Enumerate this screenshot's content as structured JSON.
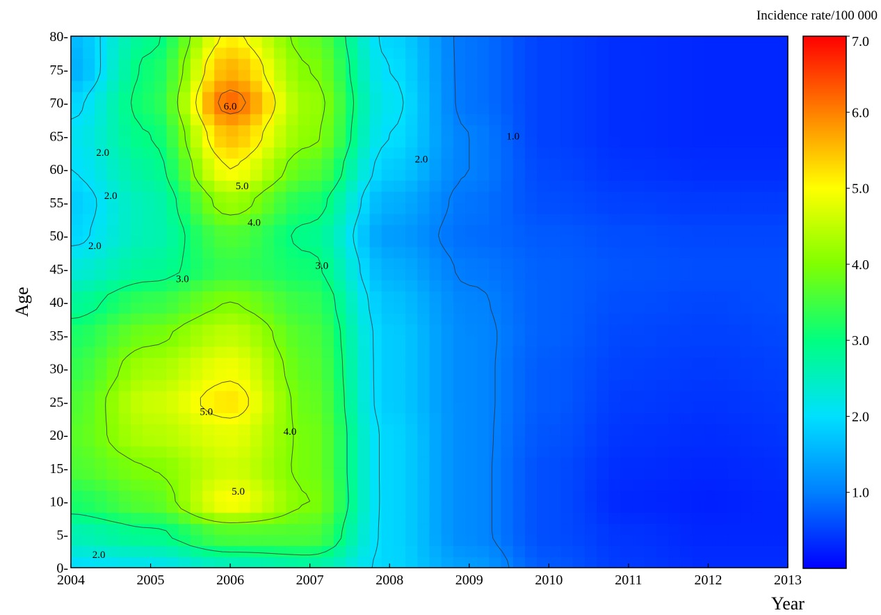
{
  "chart_data": {
    "type": "heatmap",
    "title": "",
    "xlabel": "Year",
    "ylabel": "Age",
    "colorbar_label": "Incidence rate/100 000",
    "xlim": [
      2004,
      2013
    ],
    "ylim": [
      0,
      80
    ],
    "zlim": [
      0,
      7
    ],
    "x_ticks": [
      "2004",
      "2005",
      "2006",
      "2007",
      "2008",
      "2009",
      "2010",
      "2011",
      "2012",
      "2013"
    ],
    "y_ticks": [
      "0-",
      "5-",
      "10-",
      "15-",
      "20-",
      "25-",
      "30-",
      "35-",
      "40-",
      "45-",
      "50-",
      "55-",
      "60-",
      "65-",
      "70-",
      "75-",
      "80-"
    ],
    "colorbar_ticks": [
      "1.0",
      "2.0",
      "3.0",
      "4.0",
      "5.0",
      "6.0",
      "7.0"
    ],
    "colormap": [
      "#0000ff",
      "#0080ff",
      "#00e0ff",
      "#00ff80",
      "#80ff00",
      "#ffff00",
      "#ff8000",
      "#ff0000"
    ],
    "contour_labels": [
      {
        "text": "6.0",
        "x": 2006.0,
        "y": 69.5
      },
      {
        "text": "5.0",
        "x": 2006.15,
        "y": 57.5
      },
      {
        "text": "4.0",
        "x": 2006.3,
        "y": 52
      },
      {
        "text": "3.0",
        "x": 2005.4,
        "y": 43.5
      },
      {
        "text": "3.0",
        "x": 2007.15,
        "y": 45.5
      },
      {
        "text": "2.0",
        "x": 2004.4,
        "y": 62.5
      },
      {
        "text": "2.0",
        "x": 2004.5,
        "y": 56
      },
      {
        "text": "2.0",
        "x": 2004.3,
        "y": 48.5
      },
      {
        "text": "2.0",
        "x": 2008.4,
        "y": 61.5
      },
      {
        "text": "1.0",
        "x": 2009.55,
        "y": 65
      },
      {
        "text": "5.0",
        "x": 2005.7,
        "y": 23.5
      },
      {
        "text": "4.0",
        "x": 2006.75,
        "y": 20.5
      },
      {
        "text": "5.0",
        "x": 2006.1,
        "y": 11.5
      },
      {
        "text": "2.0",
        "x": 2004.35,
        "y": 2
      }
    ],
    "grid": [
      {
        "age": 0,
        "values": [
          2.0,
          2.1,
          2.5,
          2.7,
          1.9,
          1.3,
          0.7,
          0.45,
          0.35,
          0.35
        ]
      },
      {
        "age": 5,
        "values": [
          2.6,
          2.9,
          3.6,
          3.6,
          1.9,
          1.1,
          0.6,
          0.4,
          0.3,
          0.3
        ]
      },
      {
        "age": 10,
        "values": [
          3.2,
          3.7,
          5.0,
          4.0,
          1.9,
          1.1,
          0.6,
          0.3,
          0.25,
          0.3
        ]
      },
      {
        "age": 15,
        "values": [
          3.6,
          4.0,
          4.6,
          3.9,
          1.9,
          1.1,
          0.6,
          0.35,
          0.3,
          0.35
        ]
      },
      {
        "age": 20,
        "values": [
          3.7,
          4.4,
          4.8,
          3.9,
          1.9,
          1.1,
          0.65,
          0.4,
          0.35,
          0.4
        ]
      },
      {
        "age": 25,
        "values": [
          3.6,
          4.6,
          5.2,
          3.8,
          1.8,
          1.1,
          0.7,
          0.45,
          0.4,
          0.45
        ]
      },
      {
        "age": 30,
        "values": [
          3.4,
          4.3,
          4.9,
          3.7,
          1.8,
          1.1,
          0.7,
          0.5,
          0.45,
          0.5
        ]
      },
      {
        "age": 35,
        "values": [
          3.2,
          3.9,
          4.5,
          3.6,
          1.8,
          1.1,
          0.75,
          0.55,
          0.5,
          0.55
        ]
      },
      {
        "age": 40,
        "values": [
          2.8,
          3.4,
          4.0,
          3.4,
          1.7,
          1.05,
          0.75,
          0.6,
          0.55,
          0.6
        ]
      },
      {
        "age": 45,
        "values": [
          2.3,
          2.8,
          3.4,
          3.1,
          1.5,
          0.95,
          0.75,
          0.65,
          0.6,
          0.6
        ]
      },
      {
        "age": 50,
        "values": [
          1.9,
          2.6,
          3.6,
          2.9,
          1.3,
          0.85,
          0.7,
          0.6,
          0.55,
          0.55
        ]
      },
      {
        "age": 55,
        "values": [
          1.8,
          2.6,
          4.2,
          3.2,
          1.5,
          0.9,
          0.6,
          0.5,
          0.45,
          0.45
        ]
      },
      {
        "age": 60,
        "values": [
          2.0,
          2.8,
          5.0,
          3.7,
          1.8,
          1.0,
          0.55,
          0.4,
          0.35,
          0.35
        ]
      },
      {
        "age": 65,
        "values": [
          2.1,
          3.0,
          5.5,
          4.1,
          2.0,
          1.0,
          0.5,
          0.35,
          0.3,
          0.3
        ]
      },
      {
        "age": 70,
        "values": [
          1.9,
          3.2,
          6.2,
          4.2,
          2.1,
          0.9,
          0.5,
          0.35,
          0.3,
          0.3
        ]
      },
      {
        "age": 75,
        "values": [
          1.5,
          3.1,
          5.6,
          4.0,
          2.0,
          0.9,
          0.5,
          0.35,
          0.3,
          0.3
        ]
      },
      {
        "age": 80,
        "values": [
          1.6,
          2.9,
          5.1,
          3.8,
          1.9,
          0.9,
          0.5,
          0.35,
          0.3,
          0.3
        ]
      }
    ]
  }
}
